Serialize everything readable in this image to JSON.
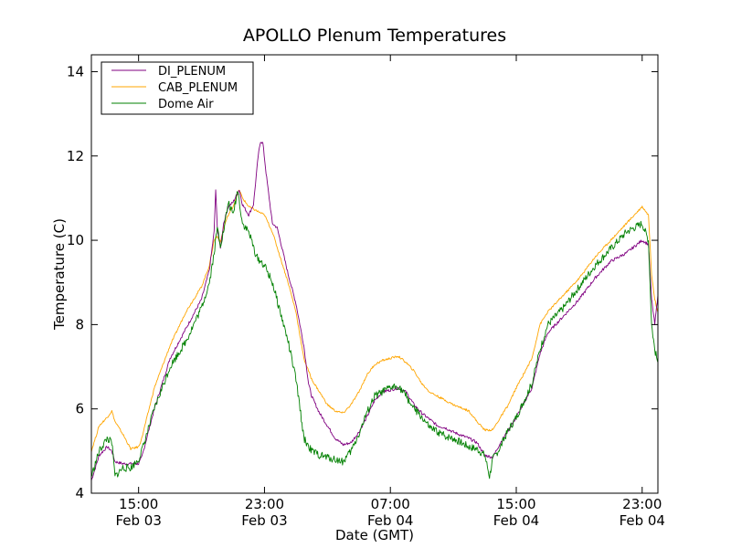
{
  "chart_data": {
    "type": "line",
    "title": "APOLLO Plenum Temperatures",
    "xlabel": "Date (GMT)",
    "ylabel": "Temperature (C)",
    "x_unit": "hours since 2014-02-03 12:00 GMT",
    "xlim": [
      0,
      36
    ],
    "ylim": [
      4,
      14.4
    ],
    "yticks": [
      4,
      6,
      8,
      10,
      12,
      14
    ],
    "xticks": [
      {
        "x": 3,
        "time": "15:00",
        "date": "Feb 03"
      },
      {
        "x": 11,
        "time": "23:00",
        "date": "Feb 03"
      },
      {
        "x": 19,
        "time": "07:00",
        "date": "Feb 04"
      },
      {
        "x": 27,
        "time": "15:00",
        "date": "Feb 04"
      },
      {
        "x": 35,
        "time": "23:00",
        "date": "Feb 04"
      }
    ],
    "legend": {
      "position": "top-left"
    },
    "series": [
      {
        "name": "DI_PLENUM",
        "color": "#800080",
        "points": [
          [
            0,
            4.3
          ],
          [
            0.5,
            4.9
          ],
          [
            1.0,
            5.1
          ],
          [
            1.3,
            5.0
          ],
          [
            1.5,
            4.75
          ],
          [
            2.0,
            4.7
          ],
          [
            3.0,
            4.7
          ],
          [
            3.2,
            4.85
          ],
          [
            4.0,
            6.0
          ],
          [
            4.5,
            6.6
          ],
          [
            5.0,
            7.2
          ],
          [
            6.0,
            7.9
          ],
          [
            7.0,
            8.6
          ],
          [
            7.5,
            9.3
          ],
          [
            7.8,
            10.2
          ],
          [
            7.9,
            11.2
          ],
          [
            8.0,
            10.3
          ],
          [
            8.2,
            9.8
          ],
          [
            8.4,
            10.4
          ],
          [
            8.7,
            10.8
          ],
          [
            9.0,
            10.9
          ],
          [
            9.4,
            11.2
          ],
          [
            9.6,
            10.85
          ],
          [
            10.0,
            10.6
          ],
          [
            10.3,
            10.85
          ],
          [
            10.6,
            12.0
          ],
          [
            10.75,
            12.35
          ],
          [
            10.9,
            12.3
          ],
          [
            11.1,
            11.6
          ],
          [
            11.3,
            11.0
          ],
          [
            11.5,
            10.4
          ],
          [
            11.8,
            10.3
          ],
          [
            12.0,
            10.0
          ],
          [
            12.5,
            9.2
          ],
          [
            13.0,
            8.5
          ],
          [
            13.5,
            7.5
          ],
          [
            13.8,
            6.6
          ],
          [
            14.0,
            6.3
          ],
          [
            14.5,
            5.9
          ],
          [
            15.0,
            5.6
          ],
          [
            15.5,
            5.3
          ],
          [
            16.0,
            5.15
          ],
          [
            16.5,
            5.2
          ],
          [
            17.0,
            5.45
          ],
          [
            17.5,
            5.8
          ],
          [
            18.0,
            6.2
          ],
          [
            18.5,
            6.4
          ],
          [
            19.0,
            6.45
          ],
          [
            19.5,
            6.5
          ],
          [
            20.0,
            6.4
          ],
          [
            20.5,
            6.1
          ],
          [
            21.0,
            5.9
          ],
          [
            21.5,
            5.75
          ],
          [
            22.0,
            5.6
          ],
          [
            22.5,
            5.55
          ],
          [
            23.0,
            5.45
          ],
          [
            24.0,
            5.3
          ],
          [
            24.5,
            5.2
          ],
          [
            25.0,
            4.9
          ],
          [
            25.5,
            4.85
          ],
          [
            26.0,
            5.2
          ],
          [
            26.5,
            5.5
          ],
          [
            27.0,
            5.8
          ],
          [
            28.0,
            6.5
          ],
          [
            28.5,
            7.3
          ],
          [
            29.0,
            7.8
          ],
          [
            30.0,
            8.2
          ],
          [
            31.0,
            8.6
          ],
          [
            32.0,
            9.1
          ],
          [
            33.0,
            9.5
          ],
          [
            34.0,
            9.7
          ],
          [
            35.0,
            10.0
          ],
          [
            35.4,
            9.9
          ],
          [
            35.6,
            8.6
          ],
          [
            35.8,
            8.0
          ],
          [
            36.0,
            8.7
          ]
        ]
      },
      {
        "name": "CAB_PLENUM",
        "color": "#ffa500",
        "points": [
          [
            0,
            5.0
          ],
          [
            0.5,
            5.6
          ],
          [
            1.0,
            5.8
          ],
          [
            1.3,
            5.95
          ],
          [
            1.5,
            5.7
          ],
          [
            2.0,
            5.4
          ],
          [
            2.5,
            5.05
          ],
          [
            3.0,
            5.1
          ],
          [
            3.2,
            5.3
          ],
          [
            4.0,
            6.5
          ],
          [
            4.5,
            7.0
          ],
          [
            5.0,
            7.5
          ],
          [
            6.0,
            8.3
          ],
          [
            7.0,
            8.9
          ],
          [
            7.5,
            9.4
          ],
          [
            7.8,
            10.0
          ],
          [
            8.0,
            10.1
          ],
          [
            8.2,
            9.95
          ],
          [
            8.4,
            10.3
          ],
          [
            8.7,
            10.6
          ],
          [
            9.0,
            10.8
          ],
          [
            9.4,
            11.2
          ],
          [
            9.6,
            11.0
          ],
          [
            10.0,
            10.8
          ],
          [
            10.5,
            10.7
          ],
          [
            11.0,
            10.6
          ],
          [
            11.5,
            10.2
          ],
          [
            12.0,
            9.6
          ],
          [
            12.5,
            9.0
          ],
          [
            13.0,
            8.3
          ],
          [
            13.5,
            7.2
          ],
          [
            13.8,
            6.9
          ],
          [
            14.0,
            6.7
          ],
          [
            14.5,
            6.4
          ],
          [
            15.0,
            6.1
          ],
          [
            15.5,
            5.95
          ],
          [
            16.0,
            5.9
          ],
          [
            16.5,
            6.1
          ],
          [
            17.0,
            6.4
          ],
          [
            17.5,
            6.8
          ],
          [
            18.0,
            7.05
          ],
          [
            18.5,
            7.15
          ],
          [
            19.0,
            7.2
          ],
          [
            19.5,
            7.25
          ],
          [
            20.0,
            7.1
          ],
          [
            20.5,
            6.9
          ],
          [
            21.0,
            6.6
          ],
          [
            21.5,
            6.4
          ],
          [
            22.0,
            6.3
          ],
          [
            22.5,
            6.2
          ],
          [
            23.0,
            6.1
          ],
          [
            24.0,
            5.95
          ],
          [
            24.5,
            5.7
          ],
          [
            25.0,
            5.5
          ],
          [
            25.5,
            5.5
          ],
          [
            26.0,
            5.8
          ],
          [
            26.5,
            6.1
          ],
          [
            27.0,
            6.5
          ],
          [
            28.0,
            7.2
          ],
          [
            28.5,
            8.0
          ],
          [
            29.0,
            8.3
          ],
          [
            30.0,
            8.7
          ],
          [
            31.0,
            9.1
          ],
          [
            32.0,
            9.6
          ],
          [
            33.0,
            10.0
          ],
          [
            34.0,
            10.4
          ],
          [
            35.0,
            10.8
          ],
          [
            35.4,
            10.6
          ],
          [
            35.6,
            9.2
          ],
          [
            35.8,
            8.6
          ],
          [
            36.0,
            8.3
          ]
        ]
      },
      {
        "name": "Dome Air",
        "color": "#008000",
        "points": [
          [
            0,
            4.4
          ],
          [
            0.5,
            5.0
          ],
          [
            1.0,
            5.3
          ],
          [
            1.3,
            5.2
          ],
          [
            1.5,
            4.4
          ],
          [
            2.0,
            4.6
          ],
          [
            2.5,
            4.6
          ],
          [
            3.0,
            4.8
          ],
          [
            3.2,
            5.0
          ],
          [
            4.0,
            6.0
          ],
          [
            4.5,
            6.5
          ],
          [
            5.0,
            7.0
          ],
          [
            6.0,
            7.6
          ],
          [
            7.0,
            8.4
          ],
          [
            7.5,
            9.0
          ],
          [
            7.8,
            9.7
          ],
          [
            8.0,
            10.3
          ],
          [
            8.2,
            9.9
          ],
          [
            8.4,
            10.2
          ],
          [
            8.7,
            10.9
          ],
          [
            9.0,
            10.6
          ],
          [
            9.3,
            11.2
          ],
          [
            9.6,
            10.4
          ],
          [
            10.0,
            10.2
          ],
          [
            10.5,
            9.6
          ],
          [
            11.0,
            9.4
          ],
          [
            11.5,
            9.0
          ],
          [
            12.0,
            8.3
          ],
          [
            12.5,
            7.6
          ],
          [
            13.0,
            6.7
          ],
          [
            13.3,
            5.9
          ],
          [
            13.5,
            5.3
          ],
          [
            14.0,
            5.0
          ],
          [
            14.5,
            4.9
          ],
          [
            15.0,
            4.85
          ],
          [
            15.5,
            4.8
          ],
          [
            16.0,
            4.75
          ],
          [
            16.5,
            5.0
          ],
          [
            17.0,
            5.4
          ],
          [
            17.5,
            5.9
          ],
          [
            18.0,
            6.3
          ],
          [
            18.5,
            6.4
          ],
          [
            19.0,
            6.5
          ],
          [
            19.5,
            6.55
          ],
          [
            20.0,
            6.3
          ],
          [
            20.5,
            6.0
          ],
          [
            21.0,
            5.8
          ],
          [
            21.5,
            5.55
          ],
          [
            22.0,
            5.45
          ],
          [
            22.5,
            5.35
          ],
          [
            23.0,
            5.3
          ],
          [
            24.0,
            5.1
          ],
          [
            24.5,
            5.05
          ],
          [
            25.0,
            4.9
          ],
          [
            25.3,
            4.4
          ],
          [
            25.5,
            4.8
          ],
          [
            26.0,
            5.1
          ],
          [
            26.5,
            5.5
          ],
          [
            27.0,
            5.8
          ],
          [
            28.0,
            6.6
          ],
          [
            28.5,
            7.4
          ],
          [
            29.0,
            8.0
          ],
          [
            30.0,
            8.4
          ],
          [
            31.0,
            8.9
          ],
          [
            32.0,
            9.4
          ],
          [
            33.0,
            9.8
          ],
          [
            34.0,
            10.2
          ],
          [
            35.0,
            10.4
          ],
          [
            35.4,
            10.0
          ],
          [
            35.6,
            8.0
          ],
          [
            35.8,
            7.4
          ],
          [
            36.0,
            7.1
          ]
        ]
      }
    ]
  }
}
